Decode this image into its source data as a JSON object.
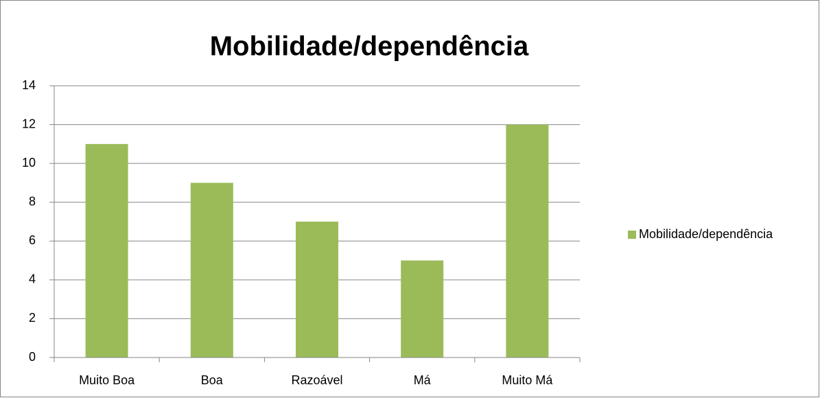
{
  "chart_data": {
    "type": "bar",
    "title": "Mobilidade/dependência",
    "categories": [
      "Muito Boa",
      "Boa",
      "Razoável",
      "Má",
      "Muito Má"
    ],
    "series": [
      {
        "name": "Mobilidade/dependência",
        "color": "#9bbb59",
        "values": [
          11,
          9,
          7,
          5,
          12
        ]
      }
    ],
    "ylim": [
      0,
      14
    ],
    "yticks": [
      0,
      2,
      4,
      6,
      8,
      10,
      12,
      14
    ],
    "grid": true,
    "legend": "right"
  }
}
